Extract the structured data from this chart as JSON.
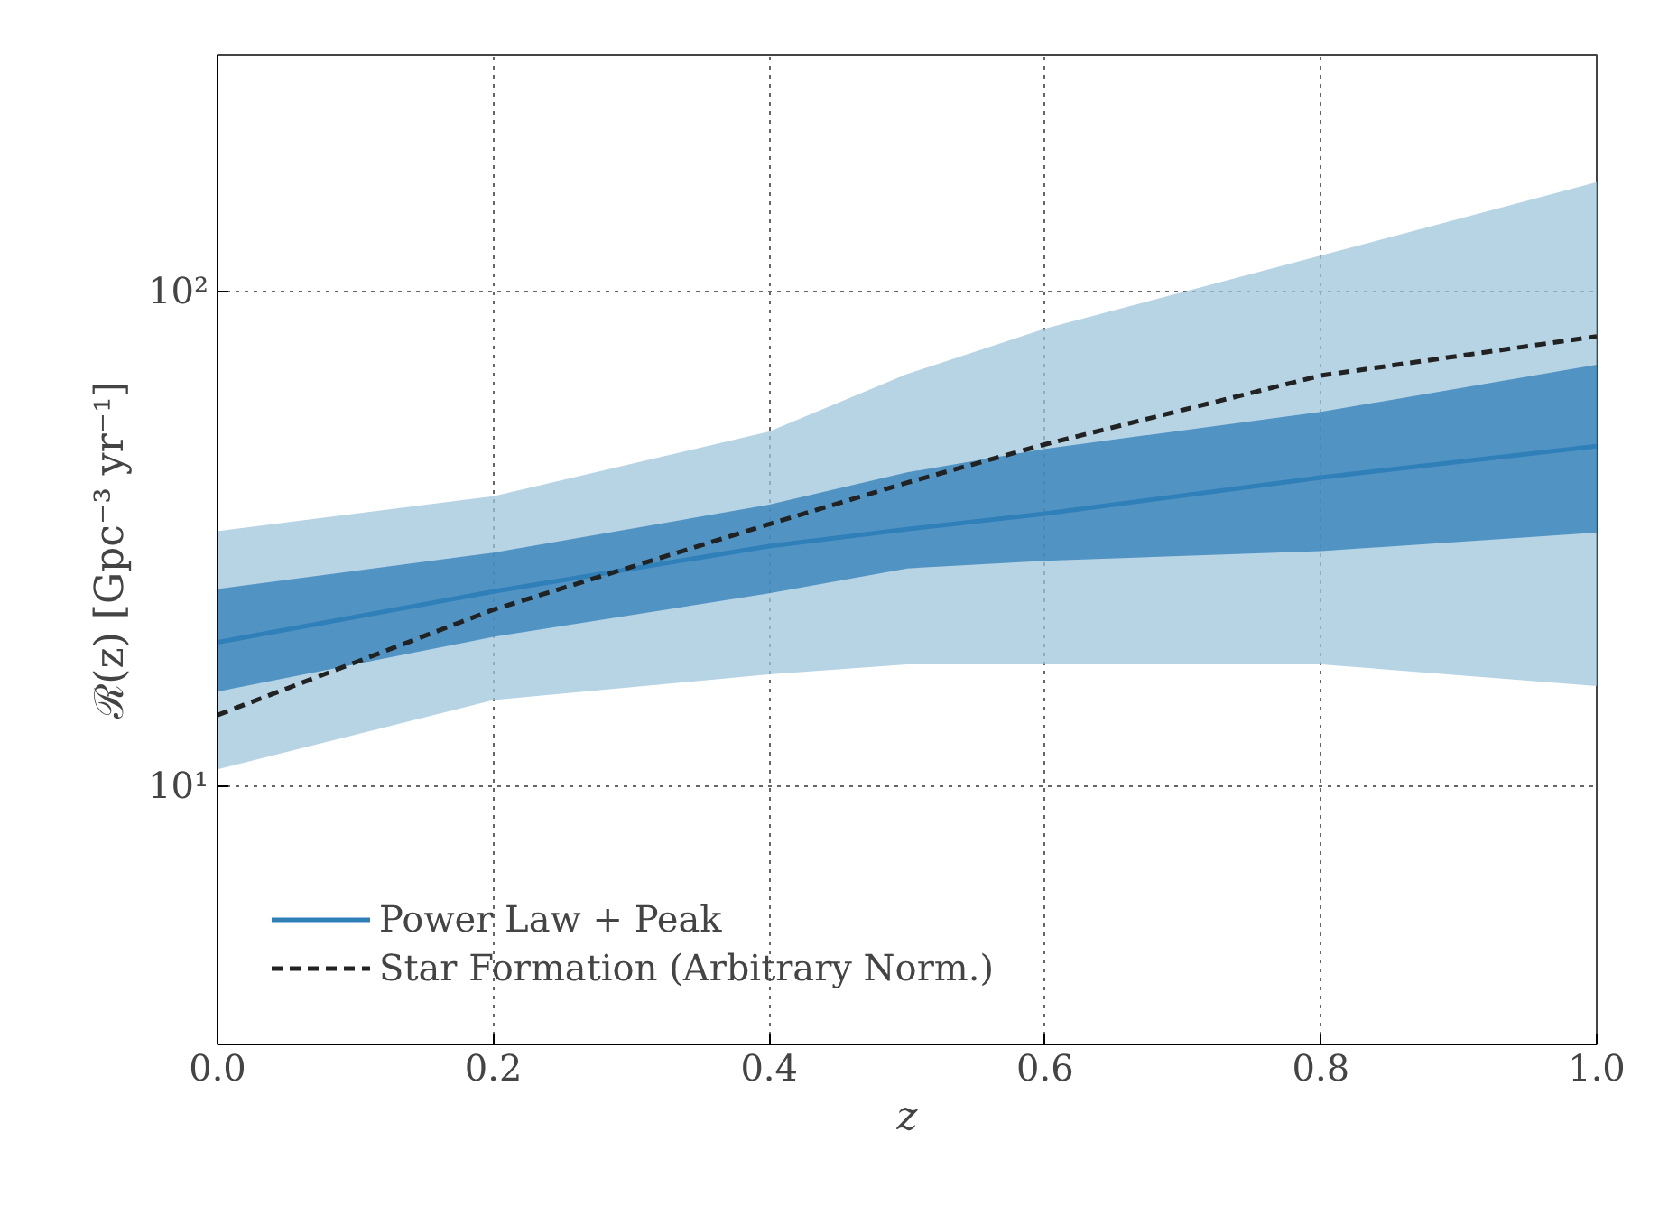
{
  "chart_data": {
    "type": "line",
    "xlabel": "z",
    "ylabel": "ℛ(z) [Gpc⁻³ yr⁻¹]",
    "x": [
      0.0,
      0.2,
      0.4,
      0.5,
      0.6,
      0.8,
      1.0
    ],
    "series": [
      {
        "color": "#9fc6dc",
        "values": [
          null,
          null,
          null,
          null,
          null,
          null,
          null
        ],
        "lower": [
          10.8,
          14.9,
          16.8,
          17.6,
          17.6,
          17.6,
          15.9
        ],
        "upper": [
          32.7,
          38.5,
          52,
          68,
          84,
          118,
          166
        ]
      },
      {
        "name": "Power Law + Peak",
        "color": "#2f7fb8",
        "values": [
          19.5,
          24.7,
          30.5,
          33,
          35.5,
          42,
          48.6
        ],
        "lower": [
          15.5,
          20,
          24.5,
          27.5,
          28.5,
          29.8,
          32.5
        ],
        "upper": [
          25,
          29.6,
          37,
          43,
          48,
          57,
          71
        ]
      },
      {
        "name": "Star Formation (Arbitrary Norm.)",
        "color": "#222222",
        "line_style": "dashed",
        "values": [
          13.9,
          22.7,
          33.8,
          41,
          49,
          67.5,
          81
        ]
      }
    ],
    "xlim": [
      0.0,
      1.0
    ],
    "ylim": [
      3,
      300
    ],
    "log": true,
    "xticks": [
      {
        "value": 0.0,
        "label": "0.0"
      },
      0.2,
      0.4,
      0.6,
      0.8,
      {
        "value": 1.0,
        "label": "1.0"
      }
    ],
    "yticks": [
      {
        "value": 10,
        "label": "10¹"
      },
      {
        "value": 100,
        "label": "10²"
      }
    ],
    "grid": true,
    "legend": "bottom left"
  }
}
